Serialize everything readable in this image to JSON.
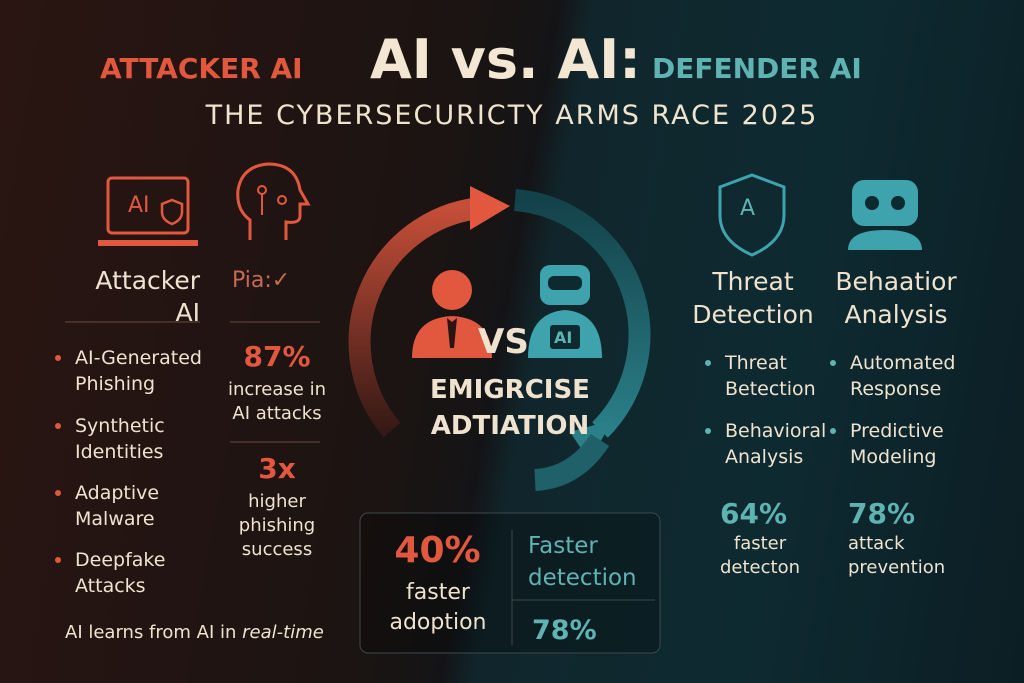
{
  "header": {
    "left_label": "ATTACKER AI",
    "title": "AI vs. AI:",
    "right_label": "DEFENDER AI",
    "subtitle": "THE CYBERSECURICTY ARMS RACE 2025"
  },
  "attacker": {
    "icon_text": "AI",
    "heading": "Attacker AI",
    "heading2": "Pia:✓",
    "items": [
      "AI-Generated Phishing",
      "Synthetic Identities",
      "Adaptive Malware",
      "Deepfake Attacks"
    ],
    "stats": [
      {
        "value": "87%",
        "label": "increase in AI attacks"
      },
      {
        "value": "3x",
        "label": "higher phishing success"
      }
    ],
    "footer": "AI learns from AI in",
    "footer_em": "real-time"
  },
  "center": {
    "vs": "VS",
    "robot_text": "AI",
    "caption": "EMIGRCISE ADTIATION",
    "box": {
      "left_value": "40%",
      "left_label": "faster adoption",
      "right_label": "Faster detection",
      "right_value": "78%"
    }
  },
  "defender": {
    "icon_text": "A",
    "headings": [
      "Threat Detection",
      "Behaatior Analysis"
    ],
    "items": [
      [
        "Threat Betection",
        "Behavioral Analysis"
      ],
      [
        "Automated Response",
        "Predictive Modeling"
      ]
    ],
    "stats": [
      {
        "value": "64%",
        "label": "faster detecton"
      },
      {
        "value": "78%",
        "label": "attack prevention"
      }
    ]
  }
}
